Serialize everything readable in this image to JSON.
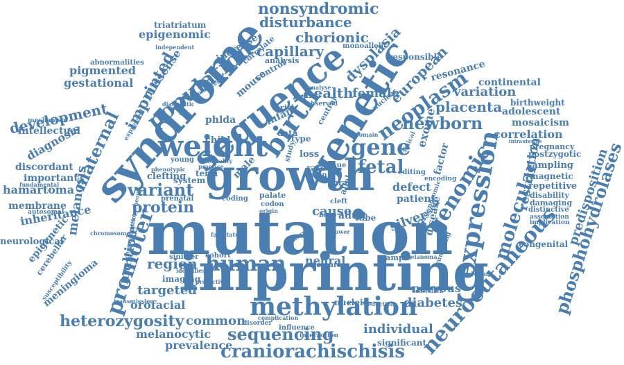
{
  "colors": {
    "primary": "#4a7eb0",
    "background": "#ffffff"
  },
  "words": {
    "mutation": "mutation",
    "imprinting": "imprinting",
    "growth": "growth",
    "syndrome": "syndrome",
    "sequence": "sequence",
    "genetic": "genetic",
    "weight": "weight",
    "birth": "birth",
    "methylation": "methylation",
    "expression": "expression",
    "neurocutaneous": "neurocutaneous",
    "phosphohydrolases": "phosphohydrolases",
    "craniorachischisis": "craniorachischisis",
    "human": "human",
    "promoter": "promoter",
    "genomic": "genomic",
    "population": "population",
    "neoplasm": "neoplasm",
    "gene": "gene",
    "fetal": "fetal",
    "newborn": "newborn",
    "molecular": "molecular",
    "maternal": "maternal",
    "variant": "variant",
    "protein": "protein",
    "sequencing": "sequencing",
    "heterozygosity": "heterozygosity",
    "imprinted": "imprinted",
    "nonsyndromic": "nonsyndromic",
    "disturbance": "disturbance",
    "chorionic": "chorionic",
    "capillary": "capillary",
    "dysplasia": "dysplasia",
    "european": "european",
    "development": "development",
    "health": "health",
    "female": "female",
    "placenta": "placenta",
    "variation": "variation",
    "correlation": "correlation",
    "restriction": "restriction",
    "predisposition": "predisposition",
    "region": "region",
    "targeted": "targeted",
    "multiple": "multiple",
    "common": "common",
    "individual": "individual",
    "diabetes": "diabetes",
    "melanocytic": "melanocytic",
    "prevalence": "prevalence",
    "orofacial": "orofacial",
    "cause": "cause",
    "defect": "defect",
    "patient": "patient",
    "adult": "adult",
    "silver": "silver",
    "neural": "neural",
    "nervous": "nervous",
    "melanosis": "melanosis",
    "inheritance": "inheritance",
    "membrane": "membrane",
    "hamartoma": "hamartoma",
    "discordant": "discordant",
    "important": "important",
    "diagnosis": "diagnosis",
    "intellectual": "intellectual",
    "pigmented": "pigmented",
    "gestational": "gestational",
    "abnormalities": "abnormalities",
    "epigenomic": "epigenomic",
    "triatriatum": "triatriatum",
    "missense": "missense",
    "increase": "increase",
    "correlate": "correlate",
    "monoallelic": "monoallelic",
    "responsible": "responsible",
    "resonance": "resonance",
    "continental": "continental",
    "birthweight": "birthweight",
    "adolescent": "adolescent",
    "mosaicism": "mosaicism",
    "pregnancy": "pregnancy",
    "postzygotic": "postzygotic",
    "sampling": "sampling",
    "magnetic": "magnetic",
    "repetitive": "repetitive",
    "disability": "disability",
    "damaging": "damaging",
    "distinctive": "distinctive",
    "association": "association",
    "implication": "implication",
    "congenital": "congenital",
    "exome": "exome",
    "factor": "factor",
    "disease": "disease",
    "phlda": "phlda",
    "infant": "infant",
    "child": "child",
    "male": "male",
    "clefting": "clefting",
    "system": "system",
    "term": "term",
    "epigenetic": "epigenetic",
    "cerebellar": "cerebellar",
    "meningioma": "meningioma",
    "neurological": "neurological",
    "imaging": "imaging",
    "sinister": "sinister",
    "cohort": "cohort",
    "palate": "palate",
    "feature": "feature",
    "sample": "sample",
    "nucleic": "nucleic",
    "mouse": "mouse",
    "control": "control",
    "analysis": "analysis",
    "type": "type",
    "data": "data",
    "loss": "loss",
    "rare": "rare",
    "tissue": "tissue",
    "skin": "skin",
    "tube": "tube",
    "study": "study",
    "allele": "allele",
    "base": "base",
    "significant": "significant",
    "consistent": "consistent",
    "young": "young",
    "coding": "coding",
    "codon": "codon",
    "editing": "editing",
    "encoding": "encoding",
    "nuclear": "nuclear",
    "prenatal": "prenatal",
    "influence": "influence",
    "disorder": "disorder",
    "interaction": "interaction",
    "reduction": "reduction",
    "mechanism": "mechanism",
    "fundamental": "fundamental",
    "autosomal": "autosomal",
    "susceptibility": "susceptibility",
    "transmission": "transmission",
    "expressed": "expressed",
    "diagnostic": "diagnostic",
    "independent": "independent",
    "circumference": "circumference",
    "risk": "risk",
    "nras": "nras",
    "russell": "russell",
    "central": "central",
    "observed": "observed",
    "clinical": "clinical",
    "domain": "domain",
    "lower": "lower",
    "intrauterine": "intrauterine",
    "cleft": "cleft",
    "chromosome": "chromosome",
    "phenotypic": "phenotypic",
    "practice": "practice",
    "identifies": "identifies",
    "protective": "protective",
    "complication": "complication",
    "melanoma": "melanoma",
    "undertaken": "undertaken",
    "origin": "origin",
    "whereas": "whereas",
    "syndromic": "syndromic",
    "group": "group",
    "truncating": "truncating",
    "characteristic": "characteristic",
    "heterogeneous": "heterogeneous",
    "facilitate": "facilitate",
    "analyse": "analyse",
    "mortality": "mortality"
  }
}
